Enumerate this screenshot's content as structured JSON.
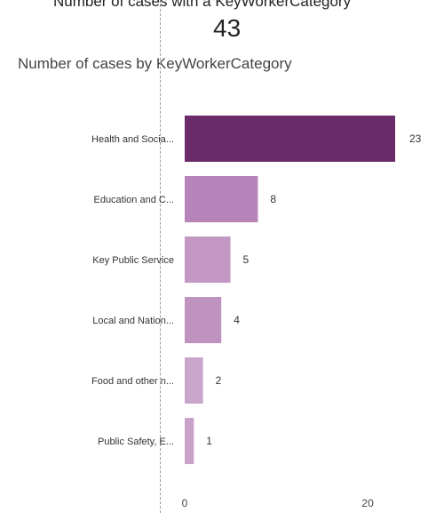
{
  "header": {
    "top_title": "Number of cases with a KeyWorkerCategory",
    "kpi_value": "43"
  },
  "chart_data": {
    "type": "bar",
    "orientation": "horizontal",
    "title": "Number of cases by KeyWorkerCategory",
    "categories": [
      "Health and Socia...",
      "Education and C...",
      "Key Public Service",
      "Local and Nation...",
      "Food and other n...",
      "Public Safety, E..."
    ],
    "values": [
      23,
      8,
      5,
      4,
      2,
      1
    ],
    "colors": [
      "#6b2b6b",
      "#b784b9",
      "#c398c4",
      "#bf93c0",
      "#caa5cb",
      "#c8a2c9"
    ],
    "xlim": [
      0,
      23
    ],
    "xticks": [
      0,
      20
    ],
    "grid": false
  }
}
